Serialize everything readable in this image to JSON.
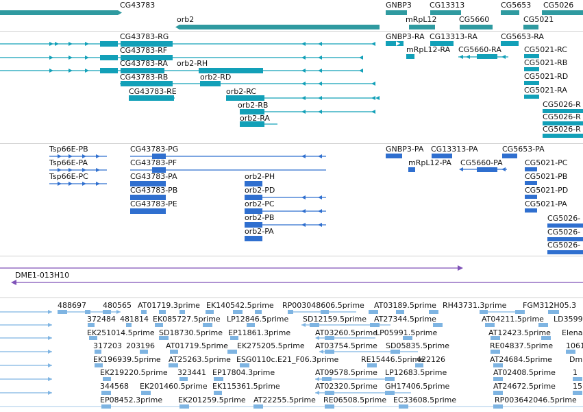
{
  "colors": {
    "gene": "#2f9aa0",
    "transcript": "#12a0b8",
    "cds": "#2f6fcf",
    "clone": "#7f52b8",
    "est": "#7eb4e2"
  },
  "gene_track": {
    "genes": [
      "CG43783",
      "orb2",
      "GNBP3",
      "mRpL12",
      "CG13313",
      "CG5660",
      "CG5653",
      "CG5021",
      "CG5026"
    ]
  },
  "transcript_track": {
    "transcripts": [
      "CG43783-RG",
      "CG43783-RF",
      "CG43783-RA",
      "orb2-RH",
      "CG43783-RB",
      "orb2-RD",
      "CG43783-RE",
      "orb2-RC",
      "orb2-RB",
      "orb2-RA",
      "GNBP3-RA",
      "CG13313-RA",
      "mRpL12-RA",
      "CG5660-RA",
      "CG5653-RA",
      "CG5021-RC",
      "CG5021-RB",
      "CG5021-RD",
      "CG5021-RA",
      "CG5026-R",
      "CG5026-R",
      "CG5026-R"
    ]
  },
  "cds_track": {
    "proteins": [
      "Tsp66E-PB",
      "Tsp66E-PA",
      "Tsp66E-PC",
      "CG43783-PG",
      "CG43783-PF",
      "CG43783-PA",
      "CG43783-PB",
      "CG43783-PE",
      "orb2-PH",
      "orb2-PD",
      "orb2-PC",
      "orb2-PB",
      "orb2-PA",
      "GNBP3-PA",
      "CG13313-PA",
      "mRpL12-PA",
      "CG5660-PA",
      "CG5653-PA",
      "CG5021-PC",
      "CG5021-PB",
      "CG5021-PD",
      "CG5021-PA",
      "CG5026-",
      "CG5026-",
      "CG5026-"
    ]
  },
  "clone_track": {
    "clone": "DME1-013H10"
  },
  "est_track": {
    "row1": [
      "488697",
      "480565",
      "AT01719.3prime",
      "EK140542.5prime",
      "RP003048606.5prime",
      "AT03189.5prime",
      "RH43731.3prime",
      "FGM312H05.3"
    ],
    "row2": [
      "372484",
      "481814",
      "EK085727.5prime",
      "LP12846.5prime",
      "SD12159.5prime",
      "AT27344.5prime",
      "AT04211.5prime",
      "LD3599"
    ],
    "row3": [
      "EK251014.5prime",
      "SD18730.5prime",
      "EP11861.3prime",
      "AT03260.5prime",
      "LP05991.5prime",
      "AT12423.5prime",
      "Elena"
    ],
    "row4": [
      "317203",
      "203196",
      "AT01719.5prime",
      "EK275205.5prime",
      "AT03754.5prime",
      "SD05835.5prime",
      "RE04837.5prime",
      "1061"
    ],
    "row5": [
      "EK196939.5prime",
      "AT25263.5prime",
      "ESG0110c.E21_F06.3prime",
      "RE15446.5prime",
      "422126",
      "AT24684.5prime",
      "Dm"
    ],
    "row6": [
      "EK219220.5prime",
      "323441",
      "EP17804.3prime",
      "AT09578.5prime",
      "LP12683.5prime",
      "AT02408.5prime",
      "1"
    ],
    "row7": [
      "344568",
      "EK201460.5prime",
      "EK115361.5prime",
      "AT02320.5prime",
      "GH17406.5prime",
      "AT24672.5prime",
      "15"
    ],
    "row8": [
      "EP08452.3prime",
      "EK201259.5prime",
      "AT22255.5prime",
      "RE06508.5prime",
      "EC33608.5prime",
      "RP003642046.5prime"
    ]
  }
}
